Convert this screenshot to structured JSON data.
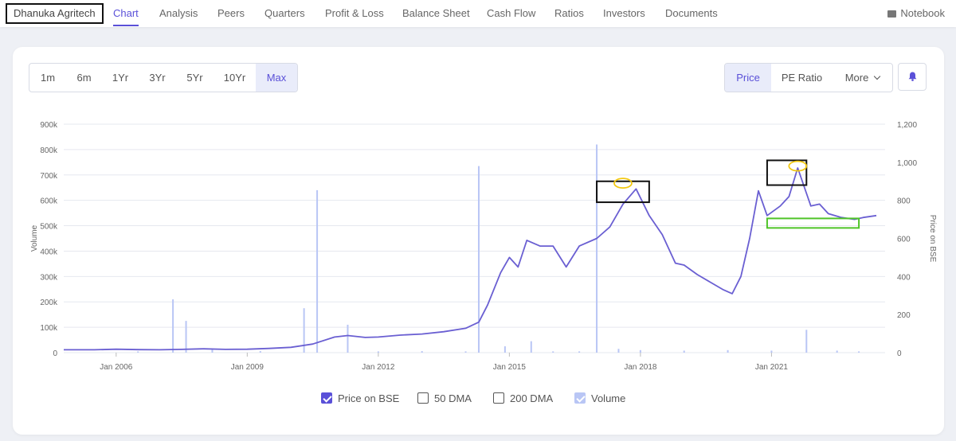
{
  "company": {
    "name": "Dhanuka Agritech"
  },
  "nav": {
    "tabs": [
      {
        "label": "Chart",
        "active": true
      },
      {
        "label": "Analysis"
      },
      {
        "label": "Peers"
      },
      {
        "label": "Quarters"
      },
      {
        "label": "Profit & Loss"
      },
      {
        "label": "Balance Sheet"
      },
      {
        "label": "Cash Flow"
      },
      {
        "label": "Ratios"
      },
      {
        "label": "Investors"
      },
      {
        "label": "Documents"
      }
    ],
    "notebook": "Notebook",
    "notebook_icon": "book-icon"
  },
  "controls": {
    "ranges": [
      "1m",
      "6m",
      "1Yr",
      "3Yr",
      "5Yr",
      "10Yr",
      "Max"
    ],
    "active_range": "Max",
    "metrics": [
      "Price",
      "PE Ratio",
      "More"
    ],
    "active_metric": "Price",
    "alert_icon": "bell-icon"
  },
  "legend": [
    {
      "label": "Price on BSE",
      "checked": true
    },
    {
      "label": "50 DMA",
      "checked": false
    },
    {
      "label": "200 DMA",
      "checked": false
    },
    {
      "label": "Volume",
      "checked": true
    }
  ],
  "colors": {
    "accent": "#5a50d8",
    "price_line": "#6a5fd2",
    "volume": "#b9c6f5",
    "grid": "#e6e8ef",
    "highlight_box": "#111111",
    "peak_ellipse": "#f2c811",
    "range_box": "#4fc428"
  },
  "chart_data": {
    "type": "line",
    "xlabel": "",
    "ylabel_left": "Volume",
    "ylabel_right": "Price on BSE",
    "x_ticks": [
      "Jan 2006",
      "Jan 2009",
      "Jan 2012",
      "Jan 2015",
      "Jan 2018",
      "Jan 2021"
    ],
    "y_left_ticks": [
      "0",
      "100k",
      "200k",
      "300k",
      "400k",
      "500k",
      "600k",
      "700k",
      "800k",
      "900k"
    ],
    "y_right_ticks": [
      "0",
      "200",
      "400",
      "600",
      "800",
      "1,000",
      "1,200"
    ],
    "x_range": [
      2004.8,
      2023.6
    ],
    "y_left_range": [
      0,
      900000
    ],
    "y_right_range": [
      0,
      1200
    ],
    "grid": true,
    "series": [
      {
        "name": "Price on BSE",
        "points": [
          [
            2004.8,
            15
          ],
          [
            2005.5,
            15
          ],
          [
            2006.0,
            18
          ],
          [
            2006.5,
            16
          ],
          [
            2007.0,
            15
          ],
          [
            2007.5,
            17
          ],
          [
            2008.0,
            20
          ],
          [
            2008.5,
            17
          ],
          [
            2009.0,
            18
          ],
          [
            2009.5,
            22
          ],
          [
            2010.0,
            28
          ],
          [
            2010.5,
            45
          ],
          [
            2011.0,
            82
          ],
          [
            2011.3,
            90
          ],
          [
            2011.7,
            80
          ],
          [
            2012.0,
            82
          ],
          [
            2012.5,
            92
          ],
          [
            2013.0,
            98
          ],
          [
            2013.5,
            110
          ],
          [
            2014.0,
            128
          ],
          [
            2014.3,
            160
          ],
          [
            2014.5,
            250
          ],
          [
            2014.8,
            420
          ],
          [
            2015.0,
            500
          ],
          [
            2015.2,
            450
          ],
          [
            2015.4,
            590
          ],
          [
            2015.7,
            560
          ],
          [
            2016.0,
            560
          ],
          [
            2016.3,
            450
          ],
          [
            2016.6,
            560
          ],
          [
            2017.0,
            600
          ],
          [
            2017.3,
            660
          ],
          [
            2017.6,
            780
          ],
          [
            2017.9,
            860
          ],
          [
            2018.2,
            720
          ],
          [
            2018.5,
            620
          ],
          [
            2018.8,
            470
          ],
          [
            2019.0,
            460
          ],
          [
            2019.3,
            410
          ],
          [
            2019.6,
            370
          ],
          [
            2019.9,
            330
          ],
          [
            2020.1,
            310
          ],
          [
            2020.3,
            400
          ],
          [
            2020.5,
            600
          ],
          [
            2020.7,
            850
          ],
          [
            2020.9,
            720
          ],
          [
            2021.2,
            770
          ],
          [
            2021.4,
            820
          ],
          [
            2021.6,
            970
          ],
          [
            2021.9,
            770
          ],
          [
            2022.1,
            780
          ],
          [
            2022.3,
            730
          ],
          [
            2022.6,
            710
          ],
          [
            2022.9,
            700
          ],
          [
            2023.1,
            710
          ],
          [
            2023.4,
            720
          ]
        ]
      },
      {
        "name": "Volume",
        "points": [
          [
            2006.5,
            5000
          ],
          [
            2007.3,
            210000
          ],
          [
            2007.6,
            125000
          ],
          [
            2008.2,
            15000
          ],
          [
            2009.3,
            6000
          ],
          [
            2010.3,
            175000
          ],
          [
            2010.6,
            640000
          ],
          [
            2011.3,
            110000
          ],
          [
            2012.0,
            5000
          ],
          [
            2013.0,
            6000
          ],
          [
            2014.0,
            5000
          ],
          [
            2014.3,
            735000
          ],
          [
            2014.9,
            25000
          ],
          [
            2015.5,
            45000
          ],
          [
            2016.0,
            5000
          ],
          [
            2016.6,
            5000
          ],
          [
            2017.0,
            820000
          ],
          [
            2017.5,
            15000
          ],
          [
            2018.0,
            10000
          ],
          [
            2019.0,
            8000
          ],
          [
            2020.0,
            10000
          ],
          [
            2021.0,
            8000
          ],
          [
            2021.8,
            90000
          ],
          [
            2022.5,
            8000
          ],
          [
            2023.0,
            5000
          ]
        ]
      }
    ],
    "annotations": [
      {
        "kind": "box",
        "color": "#111111",
        "x": [
          2017.0,
          2018.2
        ],
        "y": [
          790,
          900
        ]
      },
      {
        "kind": "box",
        "color": "#111111",
        "x": [
          2020.9,
          2021.8
        ],
        "y": [
          880,
          1010
        ]
      },
      {
        "kind": "box",
        "color": "#4fc428",
        "x": [
          2020.9,
          2023.0
        ],
        "y": [
          655,
          705
        ]
      },
      {
        "kind": "ellipse",
        "color": "#f2c811",
        "x": 2017.6,
        "y": 890
      },
      {
        "kind": "ellipse",
        "color": "#f2c811",
        "x": 2021.6,
        "y": 980
      }
    ]
  }
}
